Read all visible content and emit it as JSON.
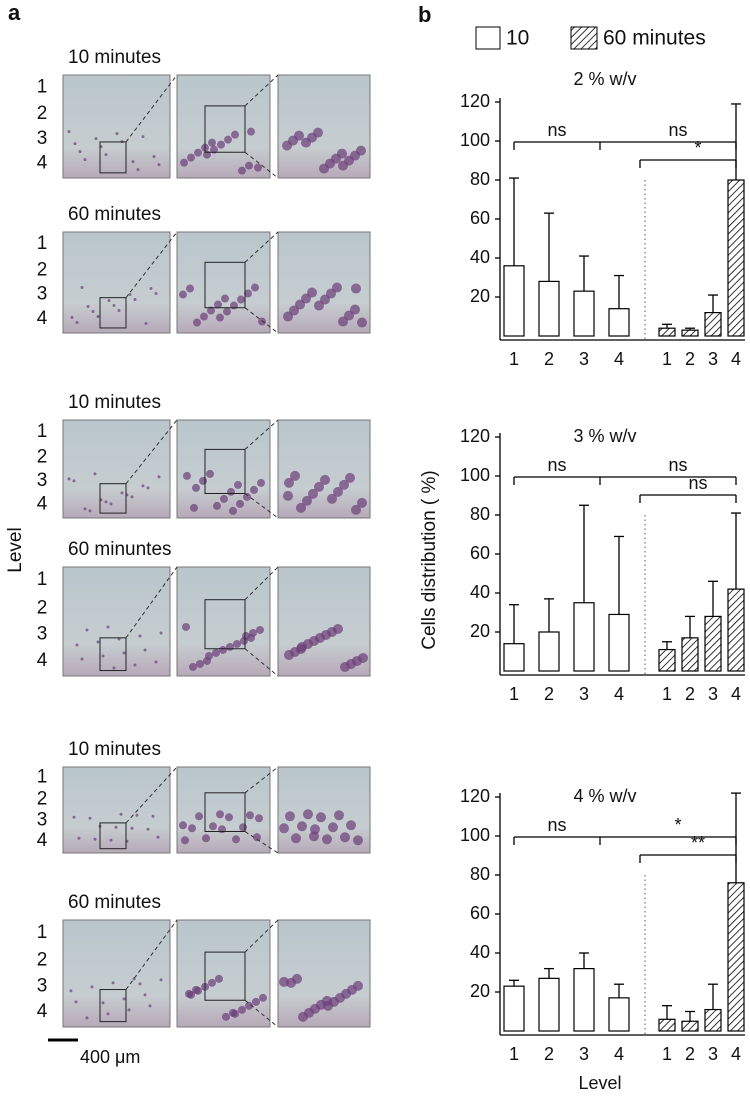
{
  "panel_a": {
    "label": "a",
    "level_label": "Level",
    "levels": [
      "1",
      "2",
      "3",
      "4"
    ],
    "rows": [
      {
        "caption": "10 minutes"
      },
      {
        "caption": "60 minutes"
      },
      {
        "caption": "10 minutes"
      },
      {
        "caption": "60 minuntes"
      },
      {
        "caption": "10 minutes"
      },
      {
        "caption": "60 minutes"
      }
    ],
    "scale_bar": "400 μm"
  },
  "panel_b": {
    "label": "b"
  },
  "chart_data": [
    {
      "type": "bar",
      "title": "2 % w/v",
      "categories": [
        "1",
        "2",
        "3",
        "4"
      ],
      "series": [
        {
          "name": "10",
          "color": "#ffffff",
          "values": [
            36,
            28,
            23,
            14
          ],
          "errors": [
            45,
            35,
            18,
            17
          ]
        },
        {
          "name": "60 minutes",
          "color": "hatch",
          "values": [
            4,
            3,
            12,
            80
          ],
          "errors": [
            2,
            1,
            9,
            39
          ]
        }
      ],
      "ylim": [
        0,
        120
      ],
      "yticks": [
        20,
        40,
        60,
        80,
        100,
        120
      ],
      "annotations": [
        "ns",
        "ns",
        "*"
      ]
    },
    {
      "type": "bar",
      "title": "3 % w/v",
      "ylabel": "Cells distribution ( %)",
      "categories": [
        "1",
        "2",
        "3",
        "4"
      ],
      "series": [
        {
          "name": "10",
          "color": "#ffffff",
          "values": [
            14,
            20,
            35,
            29
          ],
          "errors": [
            20,
            17,
            50,
            40
          ]
        },
        {
          "name": "60 minutes",
          "color": "hatch",
          "values": [
            11,
            17,
            28,
            42
          ],
          "errors": [
            4,
            11,
            18,
            39
          ]
        }
      ],
      "ylim": [
        0,
        120
      ],
      "yticks": [
        20,
        40,
        60,
        80,
        100,
        120
      ],
      "annotations": [
        "ns",
        "ns",
        "ns"
      ]
    },
    {
      "type": "bar",
      "title": "4 % w/v",
      "xlabel": "Level",
      "categories": [
        "1",
        "2",
        "3",
        "4"
      ],
      "series": [
        {
          "name": "10",
          "color": "#ffffff",
          "values": [
            23,
            27,
            32,
            17
          ],
          "errors": [
            3,
            5,
            8,
            7
          ]
        },
        {
          "name": "60 minutes",
          "color": "hatch",
          "values": [
            6,
            5,
            11,
            76
          ],
          "errors": [
            7,
            5,
            13,
            46
          ]
        }
      ],
      "ylim": [
        0,
        120
      ],
      "yticks": [
        20,
        40,
        60,
        80,
        100,
        120
      ],
      "annotations": [
        "ns",
        "*",
        "**"
      ]
    }
  ]
}
